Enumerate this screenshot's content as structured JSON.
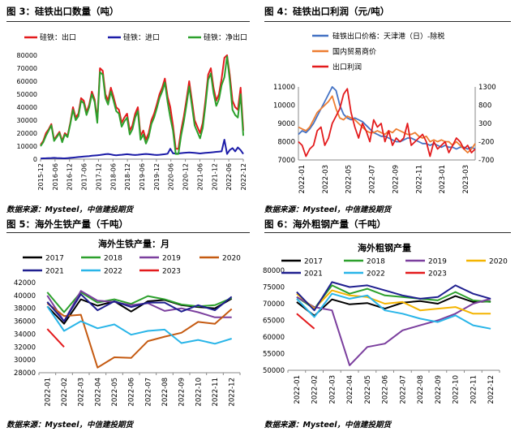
{
  "figures": [
    {
      "caption": "图 3：硅铁出口数量（吨）",
      "source": "数据来源：Mysteel，中信建投期货"
    },
    {
      "caption": "图 4：硅铁出口利润（元/吨）",
      "source": "数据来源：Mysteel，中信建投期货"
    },
    {
      "caption": "图 5：海外生铁产量（千吨）",
      "source": "数据来源：Mysteel，中信建投期货"
    },
    {
      "caption": "图 6：海外粗钢产量（千吨）",
      "source": "数据来源：Mysteel，中信建投期货"
    }
  ],
  "chart_data": [
    {
      "type": "line",
      "title": "",
      "x_ticks": [
        "2015-12",
        "2016-06",
        "2016-12",
        "2017-06",
        "2017-12",
        "2018-06",
        "2018-12",
        "2019-06",
        "2019-12",
        "2020-06",
        "2020-12",
        "2021-06",
        "2021-12",
        "2022-06",
        "2022-12"
      ],
      "ylim": [
        0,
        80000
      ],
      "y_ticks": [
        0,
        10000,
        20000,
        30000,
        40000,
        50000,
        60000,
        70000,
        80000
      ],
      "series": [
        {
          "name": "硅铁：出口",
          "color": "#e31a1c",
          "values": [
            11000,
            14000,
            20000,
            23000,
            27000,
            15000,
            18000,
            21000,
            14000,
            20000,
            18000,
            28000,
            40000,
            32000,
            35000,
            47000,
            45000,
            36000,
            42000,
            52000,
            46000,
            30000,
            70000,
            68000,
            50000,
            45000,
            55000,
            48000,
            40000,
            38000,
            28000,
            32000,
            35000,
            22000,
            26000,
            35000,
            40000,
            18000,
            22000,
            15000,
            20000,
            30000,
            35000,
            42000,
            50000,
            55000,
            62000,
            48000,
            40000,
            26000,
            8000,
            8000,
            22000,
            33000,
            46000,
            60000,
            45000,
            30000,
            25000,
            20000,
            28000,
            45000,
            65000,
            70000,
            55000,
            45000,
            50000,
            62000,
            78000,
            80000,
            65000,
            45000,
            40000,
            38000,
            55000,
            22000
          ]
        },
        {
          "name": "硅铁：进口",
          "color": "#1c1ca8",
          "values": [
            500,
            600,
            700,
            800,
            900,
            1000,
            900,
            800,
            700,
            600,
            800,
            1000,
            1200,
            1400,
            1600,
            1800,
            2000,
            2200,
            2400,
            2600,
            2800,
            3000,
            3200,
            3500,
            3800,
            4000,
            3600,
            3200,
            3000,
            3200,
            3400,
            3600,
            3800,
            3600,
            3400,
            3200,
            3400,
            3600,
            3800,
            4000,
            3800,
            3600,
            3400,
            3200,
            3400,
            3600,
            3800,
            4200,
            8000,
            4500,
            4200,
            4400,
            4600,
            4800,
            5000,
            5200,
            5000,
            4800,
            4600,
            4400,
            4600,
            4800,
            5000,
            5200,
            5400,
            5600,
            5800,
            6000,
            15000,
            4000,
            7000,
            8500,
            6000,
            9000,
            7000,
            4000
          ]
        },
        {
          "name": "硅铁：净出口",
          "color": "#2ca02c",
          "values": [
            10000,
            13000,
            18000,
            22000,
            26000,
            14000,
            17000,
            20000,
            13000,
            19000,
            17000,
            27000,
            38000,
            30000,
            33000,
            45000,
            43000,
            34000,
            40000,
            50000,
            44000,
            28000,
            67000,
            65000,
            47000,
            42000,
            52000,
            45000,
            37000,
            35000,
            25000,
            29000,
            32000,
            19000,
            23000,
            32000,
            37000,
            15000,
            19000,
            12000,
            17000,
            27000,
            32000,
            39000,
            47000,
            52000,
            59000,
            44000,
            32000,
            22000,
            4000,
            4000,
            18000,
            29000,
            42000,
            56000,
            41000,
            26000,
            21000,
            16000,
            24000,
            41000,
            61000,
            66000,
            51000,
            41000,
            46000,
            57000,
            63000,
            79000,
            61000,
            38000,
            34000,
            32000,
            50000,
            18000
          ]
        }
      ]
    },
    {
      "type": "line",
      "title": "",
      "x_ticks": [
        "2022-01",
        "2022-03",
        "2022-05",
        "2022-07",
        "2022-09",
        "2022-11",
        "2023-01",
        "2023-03"
      ],
      "ylim_left": [
        7000,
        11000
      ],
      "y_ticks_left": [
        7000,
        8000,
        9000,
        10000,
        11000
      ],
      "ylim_right": [
        -700,
        1300
      ],
      "y_ticks_right": [
        -700,
        -200,
        300,
        800,
        1300
      ],
      "series": [
        {
          "name": "硅铁出口价格：天津港（日）-除税",
          "color": "#4472c4",
          "axis": "left",
          "values": [
            8400,
            8600,
            8500,
            8700,
            9000,
            9400,
            9800,
            10200,
            10600,
            11000,
            10800,
            10000,
            9500,
            9300,
            9200,
            9300,
            9200,
            9100,
            8900,
            8700,
            8500,
            8400,
            8300,
            8300,
            8200,
            8100,
            8000,
            8000,
            8100,
            8200,
            8200,
            8100,
            8000,
            7900,
            7900,
            7800,
            7900,
            7800,
            7700,
            7800,
            7700,
            7700,
            7600,
            7700,
            7700,
            7600,
            7700,
            7600
          ]
        },
        {
          "name": "国内贸易商价",
          "color": "#ed7d31",
          "axis": "left",
          "values": [
            8800,
            8700,
            8600,
            8800,
            9200,
            9600,
            9800,
            10000,
            10200,
            10500,
            9800,
            9300,
            9200,
            9400,
            9300,
            9200,
            9000,
            8800,
            8600,
            8500,
            8500,
            8600,
            8500,
            8400,
            8600,
            8500,
            8700,
            8600,
            8500,
            8400,
            8400,
            8500,
            8300,
            8200,
            8300,
            8000,
            8100,
            8000,
            8100,
            8000,
            8000,
            7800,
            8000,
            7800,
            7600,
            7400,
            7600,
            7900
          ]
        },
        {
          "name": "出口利润",
          "color": "#e31a1c",
          "axis": "right",
          "values": [
            -200,
            -300,
            -600,
            -400,
            -300,
            100,
            200,
            -300,
            -100,
            300,
            500,
            700,
            1100,
            1250,
            600,
            200,
            -100,
            300,
            100,
            -200,
            400,
            200,
            300,
            -200,
            100,
            -300,
            -100,
            -200,
            -100,
            300,
            -300,
            -200,
            -100,
            0,
            -200,
            -600,
            -200,
            -400,
            -300,
            -200,
            -500,
            -300,
            -100,
            -200,
            -400,
            -300,
            -500,
            -400
          ]
        }
      ]
    },
    {
      "type": "line",
      "title": "海外生铁产量：月",
      "categories": [
        "2022-01",
        "2022-02",
        "2022-03",
        "2022-04",
        "2022-05",
        "2022-06",
        "2022-07",
        "2022-08",
        "2022-09",
        "2022-10",
        "2022-11",
        "2022-12"
      ],
      "ylim": [
        28000,
        42000
      ],
      "y_ticks": [
        28000,
        30000,
        32000,
        34000,
        36000,
        38000,
        40000,
        42000
      ],
      "series": [
        {
          "name": "2017",
          "color": "#000000",
          "values": [
            38300,
            35600,
            39400,
            38400,
            39100,
            37500,
            39100,
            39300,
            38500,
            38200,
            38000,
            39500
          ]
        },
        {
          "name": "2018",
          "color": "#2ca02c",
          "values": [
            40500,
            37400,
            40500,
            38900,
            39400,
            38700,
            39900,
            39400,
            38600,
            38300,
            38500,
            39600
          ]
        },
        {
          "name": "2019",
          "color": "#7b3f9e",
          "values": [
            40000,
            36000,
            40700,
            39200,
            39000,
            38500,
            38800,
            37600,
            38000,
            37400,
            36600,
            36600
          ]
        },
        {
          "name": "2020",
          "color": "#c55a11",
          "values": [
            38800,
            36800,
            37000,
            28800,
            30400,
            30300,
            32900,
            33600,
            34200,
            35900,
            35600,
            37900
          ]
        },
        {
          "name": "2021",
          "color": "#1f1f8f",
          "values": [
            39000,
            36000,
            40200,
            37700,
            39100,
            38200,
            38900,
            38900,
            37500,
            38500,
            37700,
            39800
          ]
        },
        {
          "name": "2022",
          "color": "#29b5e8",
          "values": [
            38300,
            34500,
            36000,
            34900,
            35500,
            33900,
            34500,
            34700,
            32600,
            33100,
            32500,
            33300
          ]
        },
        {
          "name": "2023",
          "color": "#e31a1c",
          "values": [
            34800,
            32000,
            null,
            null,
            null,
            null,
            null,
            null,
            null,
            null,
            null,
            null
          ]
        }
      ]
    },
    {
      "type": "line",
      "title": "海外粗钢产量",
      "categories": [
        "2022-01",
        "2022-02",
        "2022-03",
        "2022-04",
        "2022-05",
        "2022-06",
        "2022-07",
        "2022-08",
        "2022-09",
        "2022-10",
        "2022-11",
        "2022-12"
      ],
      "ylim": [
        50000,
        80000
      ],
      "y_ticks": [
        50000,
        55000,
        60000,
        65000,
        70000,
        75000,
        80000
      ],
      "series": [
        {
          "name": "2017",
          "color": "#000000",
          "values": [
            70500,
            66400,
            71300,
            69800,
            70200,
            68500,
            70300,
            70800,
            70000,
            72300,
            70500,
            70700
          ]
        },
        {
          "name": "2018",
          "color": "#2ca02c",
          "values": [
            72000,
            68500,
            75500,
            73000,
            74500,
            72500,
            72000,
            71500,
            71000,
            73500,
            71000,
            70500
          ]
        },
        {
          "name": "2019",
          "color": "#7b3f9e",
          "values": [
            72000,
            69000,
            68000,
            51500,
            57000,
            58000,
            62000,
            63500,
            65000,
            67000,
            70000,
            71500
          ]
        },
        {
          "name": "2020",
          "color": "#f4b400",
          "values": [
            73000,
            68500,
            74000,
            72500,
            72000,
            70000,
            70500,
            68000,
            68500,
            69000,
            67000,
            67000
          ]
        },
        {
          "name": "2021",
          "color": "#1f1f8f",
          "values": [
            73500,
            68000,
            76500,
            75000,
            75500,
            74000,
            72500,
            71500,
            72000,
            75500,
            73000,
            71500
          ]
        },
        {
          "name": "2022",
          "color": "#29b5e8",
          "values": [
            71500,
            66000,
            73000,
            71500,
            72500,
            68000,
            67000,
            65500,
            64500,
            66500,
            63500,
            62500
          ]
        },
        {
          "name": "2023",
          "color": "#e31a1c",
          "values": [
            67000,
            62500,
            null,
            null,
            null,
            null,
            null,
            null,
            null,
            null,
            null,
            null
          ]
        }
      ]
    }
  ]
}
